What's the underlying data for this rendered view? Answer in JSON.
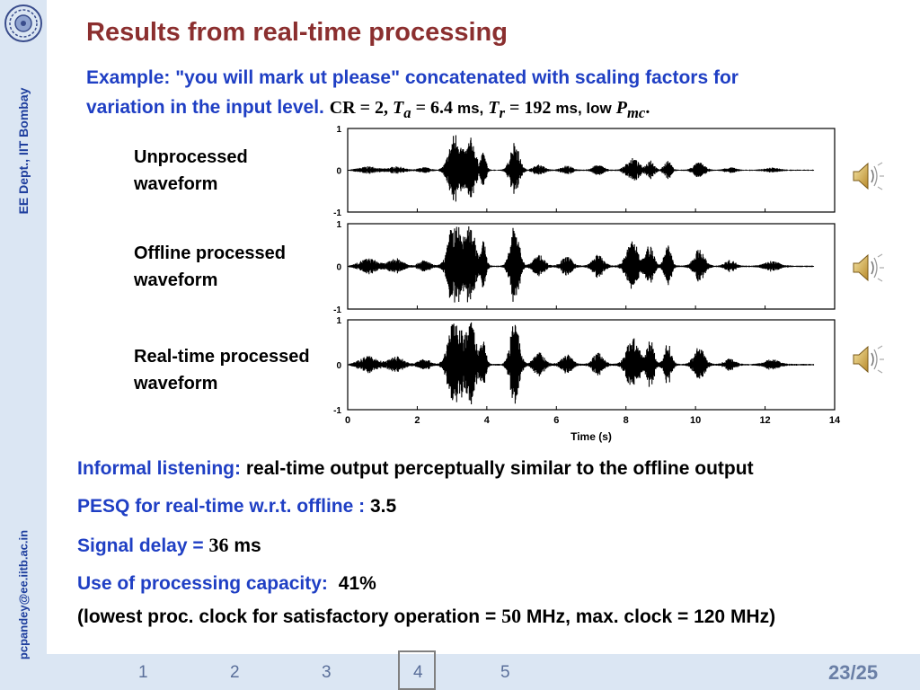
{
  "sidebar": {
    "dept": "EE Dept.,  IIT Bombay",
    "email": "pcpandey@ee.iitb.ac.in"
  },
  "title": "Results from real-time processing",
  "example": {
    "line1": "Example: \"you will mark ut please\" concatenated with scaling factors for",
    "line2": "variation in the input level.",
    "cr": "CR = 2,",
    "ta_sym": "T",
    "ta_sub": "a",
    "ta_val": "= 6.4",
    "ms1": "ms,",
    "tr_sym": "T",
    "tr_sub": "r",
    "tr_val": "= 192",
    "ms2": "ms, low",
    "pmc_sym": "P",
    "pmc_sub": "mc",
    "period": "."
  },
  "waveforms": [
    {
      "line1": "Unprocessed",
      "line2": "waveform"
    },
    {
      "line1": "Offline processed",
      "line2": "waveform"
    },
    {
      "line1": "Real-time processed",
      "line2": "waveform"
    }
  ],
  "chart_data": {
    "type": "line",
    "panels": [
      "Unprocessed waveform",
      "Offline processed waveform",
      "Real-time processed waveform"
    ],
    "xlabel": "Time (s)",
    "xlim": [
      0,
      14
    ],
    "ylim": [
      -1,
      1
    ],
    "x_ticks": [
      "0",
      "2",
      "4",
      "6",
      "8",
      "10",
      "12",
      "14"
    ],
    "y_ticks": [
      "1",
      "0",
      "-1"
    ]
  },
  "info": {
    "listening_label": "Informal listening:",
    "listening_value": "real-time output perceptually similar to the offline output",
    "pesq_label": "PESQ for real-time w.r.t. offline :",
    "pesq_value": "3.5",
    "delay_label": "Signal delay =",
    "delay_num": "36",
    "delay_unit": "ms",
    "capacity_label": "Use of processing capacity:",
    "capacity_value": "41%",
    "note_a": "(lowest proc. clock for satisfactory operation =",
    "note_num": "50",
    "note_b": "MHz, max. clock = 120 MHz)"
  },
  "nav": {
    "pages": [
      "1",
      "2",
      "3",
      "4",
      "5"
    ],
    "current_index": 3,
    "slide_number": "23/25"
  },
  "colors": {
    "title": "#8b2f2f",
    "accent": "#1f3fc4",
    "sidebar": "#dbe6f3"
  }
}
